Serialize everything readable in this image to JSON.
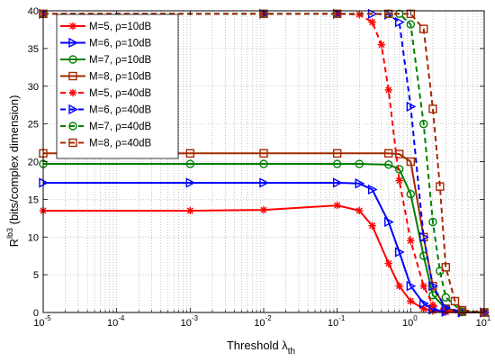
{
  "chart_data": {
    "type": "line",
    "x_scale": "log",
    "xlim": [
      1e-05,
      10
    ],
    "ylim": [
      0,
      40
    ],
    "grid": true,
    "legend_position": "top-left",
    "xlabel_parts": [
      "Threshold ",
      "λ",
      "th"
    ],
    "ylabel_parts": [
      "R",
      "lb3",
      " (bits/complex dimension)"
    ],
    "x_tick_exponents": [
      "-5",
      "-4",
      "-3",
      "-2",
      "-1",
      "0",
      "1"
    ],
    "x_tick_base": "10",
    "y_ticks": [
      "0",
      "5",
      "10",
      "15",
      "20",
      "25",
      "30",
      "35",
      "40"
    ],
    "series": [
      {
        "name": "M=5, ρ=10dB",
        "color": "#ff0000",
        "dash": "solid",
        "marker": "star",
        "x": [
          1e-05,
          0.001,
          0.01,
          0.1,
          0.2,
          0.3,
          0.5,
          0.7,
          1.0,
          1.5,
          2.0,
          3.0,
          5.0,
          10.0
        ],
        "y": [
          13.5,
          13.5,
          13.6,
          14.2,
          13.5,
          11.5,
          6.5,
          3.5,
          1.5,
          0.5,
          0.2,
          0.05,
          0.0,
          0.0
        ]
      },
      {
        "name": "M=6, ρ=10dB",
        "color": "#0000ff",
        "dash": "solid",
        "marker": "triangle-right",
        "x": [
          1e-05,
          0.001,
          0.01,
          0.1,
          0.2,
          0.3,
          0.5,
          0.7,
          1.0,
          1.5,
          2.0,
          3.0,
          5.0,
          10.0
        ],
        "y": [
          17.2,
          17.2,
          17.2,
          17.2,
          17.1,
          16.3,
          12.0,
          8.0,
          3.5,
          1.2,
          0.4,
          0.1,
          0.0,
          0.0
        ]
      },
      {
        "name": "M=7, ρ=10dB",
        "color": "#008000",
        "dash": "solid",
        "marker": "circle",
        "x": [
          1e-05,
          0.001,
          0.01,
          0.1,
          0.2,
          0.5,
          0.7,
          1.0,
          1.5,
          2.0,
          3.0,
          5.0,
          10.0
        ],
        "y": [
          19.7,
          19.7,
          19.7,
          19.7,
          19.7,
          19.6,
          19.0,
          15.7,
          7.5,
          2.3,
          0.5,
          0.1,
          0.0
        ]
      },
      {
        "name": "M=8, ρ=10dB",
        "color": "#a52a00",
        "dash": "solid",
        "marker": "square",
        "x": [
          1e-05,
          0.001,
          0.01,
          0.1,
          0.5,
          0.7,
          1.0,
          1.5,
          2.0,
          3.0,
          5.0,
          10.0
        ],
        "y": [
          21.1,
          21.1,
          21.1,
          21.1,
          21.1,
          21.0,
          20.0,
          10.0,
          3.5,
          0.5,
          0.1,
          0.0
        ]
      },
      {
        "name": "M=5, ρ=40dB",
        "color": "#ff0000",
        "dash": "dashed",
        "marker": "star",
        "x": [
          1e-05,
          0.01,
          0.1,
          0.2,
          0.3,
          0.4,
          0.5,
          0.7,
          1.0,
          1.5,
          2.0,
          3.0,
          5.0,
          10.0
        ],
        "y": [
          39.6,
          39.6,
          39.6,
          39.5,
          38.5,
          35.5,
          29.5,
          17.5,
          9.5,
          3.5,
          1.0,
          0.2,
          0.0,
          0.0
        ]
      },
      {
        "name": "M=6, ρ=40dB",
        "color": "#0000ff",
        "dash": "dashed",
        "marker": "triangle-right",
        "x": [
          1e-05,
          0.01,
          0.1,
          0.3,
          0.5,
          0.7,
          1.0,
          1.5,
          2.0,
          3.0,
          5.0,
          10.0
        ],
        "y": [
          39.6,
          39.6,
          39.6,
          39.6,
          39.5,
          38.5,
          27.3,
          10.0,
          3.5,
          0.6,
          0.1,
          0.0
        ]
      },
      {
        "name": "M=7, ρ=40dB",
        "color": "#008000",
        "dash": "dashed",
        "marker": "circle",
        "x": [
          1e-05,
          0.01,
          0.1,
          0.5,
          0.7,
          1.0,
          1.5,
          2.0,
          2.5,
          3.0,
          5.0,
          10.0
        ],
        "y": [
          39.6,
          39.6,
          39.6,
          39.6,
          39.6,
          38.2,
          25.0,
          12.0,
          5.5,
          2.0,
          0.1,
          0.0
        ]
      },
      {
        "name": "M=8, ρ=40dB",
        "color": "#a52a00",
        "dash": "dashed",
        "marker": "square",
        "x": [
          1e-05,
          0.01,
          0.1,
          0.5,
          1.0,
          1.5,
          2.0,
          2.5,
          3.0,
          4.0,
          5.0,
          10.0
        ],
        "y": [
          39.6,
          39.6,
          39.6,
          39.6,
          39.6,
          37.6,
          27.0,
          16.7,
          6.0,
          1.5,
          0.3,
          0.0
        ]
      }
    ]
  }
}
